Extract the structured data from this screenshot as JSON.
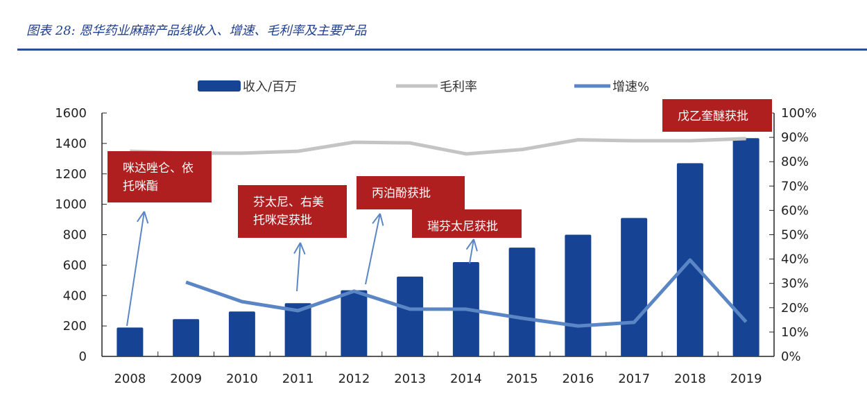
{
  "title": "图表 28: 恩华药业麻醉产品线收入、增速、毛利率及主要产品",
  "chart_data": {
    "type": "bar+line",
    "categories": [
      "2008",
      "2009",
      "2010",
      "2011",
      "2012",
      "2013",
      "2014",
      "2015",
      "2016",
      "2017",
      "2018",
      "2019"
    ],
    "series": [
      {
        "name": "收入/百万",
        "type": "bar",
        "axis": "left",
        "color": "#174394",
        "values": [
          190,
          245,
          295,
          350,
          435,
          525,
          620,
          715,
          800,
          910,
          1270,
          1435
        ]
      },
      {
        "name": "毛利率",
        "type": "line",
        "axis": "right",
        "color": "#c4c4c4",
        "values": [
          84.3,
          83.5,
          83.5,
          84.3,
          88,
          87.7,
          83.2,
          85,
          89,
          88.6,
          88.6,
          89.5
        ]
      },
      {
        "name": "增速%",
        "type": "line",
        "axis": "right",
        "color": "#5b86c6",
        "values": [
          null,
          30.5,
          22.5,
          18.8,
          26.8,
          19.4,
          19.4,
          15.7,
          12.5,
          14,
          39.6,
          14.2
        ]
      }
    ],
    "left_axis": {
      "range": [
        0,
        1600
      ],
      "ticks": [
        "0",
        "200",
        "400",
        "600",
        "800",
        "1000",
        "1200",
        "1400",
        "1600"
      ]
    },
    "right_axis": {
      "range": [
        0,
        100
      ],
      "ticks": [
        "0%",
        "10%",
        "20%",
        "30%",
        "40%",
        "50%",
        "60%",
        "70%",
        "80%",
        "90%",
        "100%"
      ]
    },
    "legend_position": "top",
    "annotations": [
      {
        "text_lines": [
          "咪达唑仑、依",
          "托咪酯"
        ],
        "year": "2008"
      },
      {
        "text_lines": [
          "芬太尼、右美",
          "托咪定获批"
        ],
        "year": "2011"
      },
      {
        "text_lines": [
          "丙泊酚获批"
        ],
        "year": "2012"
      },
      {
        "text_lines": [
          "瑞芬太尼获批"
        ],
        "year": "2014"
      },
      {
        "text_lines": [
          "戊乙奎醚获批"
        ],
        "year": "2019"
      }
    ],
    "annotation_color": "#b01f1f",
    "grid": false
  }
}
